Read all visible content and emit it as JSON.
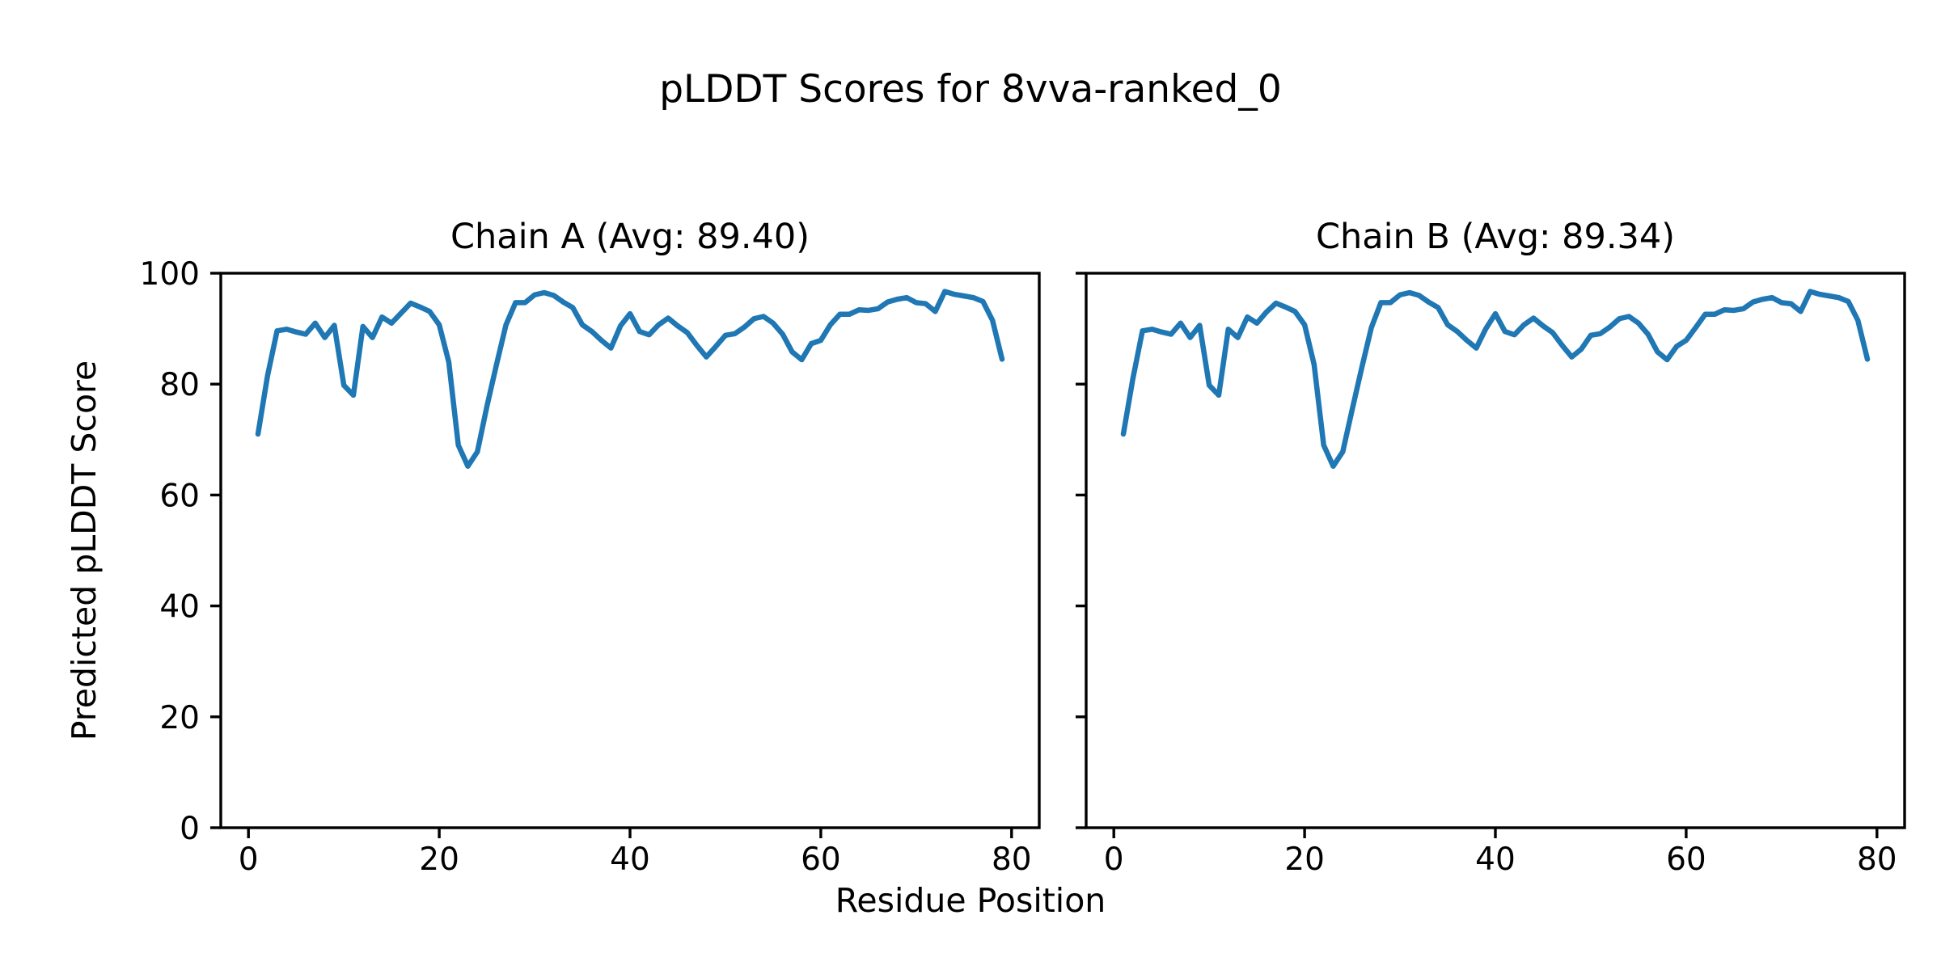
{
  "figure": {
    "title": "pLDDT Scores for 8vva-ranked_0",
    "xlabel": "Residue Position",
    "ylabel": "Predicted pLDDT Score",
    "background_color": "#ffffff",
    "text_color": "#000000",
    "line_color": "#1f77b4"
  },
  "chart_data": [
    {
      "type": "line",
      "chain": "A",
      "title": "Chain A (Avg: 89.40)",
      "avg": 89.4,
      "xlabel": "Residue Position",
      "ylabel": "Predicted pLDDT Score",
      "grid": false,
      "legend": null,
      "x_start": 1,
      "x_step": 1,
      "xlim": [
        -2.9,
        82.9
      ],
      "ylim": [
        0,
        100
      ],
      "xticks": [
        0,
        20,
        40,
        60,
        80
      ],
      "yticks": [
        0,
        20,
        40,
        60,
        80,
        100
      ],
      "show_ytick_labels": true,
      "line_color": "#1f77b4",
      "y": [
        71.0,
        81.5,
        89.6,
        89.9,
        89.4,
        89.0,
        91.0,
        88.4,
        90.6,
        79.8,
        78.0,
        90.4,
        88.4,
        92.1,
        91.0,
        92.8,
        94.6,
        93.9,
        93.1,
        90.7,
        84.0,
        69.0,
        65.2,
        67.8,
        76.0,
        83.5,
        90.7,
        94.7,
        94.7,
        96.1,
        96.5,
        96.0,
        94.8,
        93.8,
        90.7,
        89.5,
        87.9,
        86.5,
        90.5,
        92.7,
        89.5,
        88.9,
        90.7,
        91.9,
        90.5,
        89.3,
        87.0,
        84.9,
        86.8,
        88.8,
        89.1,
        90.3,
        91.8,
        92.2,
        91.0,
        89.0,
        85.8,
        84.4,
        87.3,
        87.9,
        90.7,
        92.6,
        92.6,
        93.4,
        93.3,
        93.6,
        94.8,
        95.3,
        95.6,
        94.7,
        94.5,
        93.1,
        96.7,
        96.2,
        95.9,
        95.6,
        94.9,
        91.5,
        84.5
      ]
    },
    {
      "type": "line",
      "chain": "B",
      "title": "Chain B (Avg: 89.34)",
      "avg": 89.34,
      "xlabel": "Residue Position",
      "ylabel": "Predicted pLDDT Score",
      "grid": false,
      "legend": null,
      "x_start": 1,
      "x_step": 1,
      "xlim": [
        -2.9,
        82.9
      ],
      "ylim": [
        0,
        100
      ],
      "xticks": [
        0,
        20,
        40,
        60,
        80
      ],
      "yticks": [
        0,
        20,
        40,
        60,
        80,
        100
      ],
      "show_ytick_labels": false,
      "line_color": "#1f77b4",
      "y": [
        71.0,
        81.0,
        89.6,
        89.9,
        89.4,
        89.0,
        91.0,
        88.4,
        90.6,
        79.8,
        78.0,
        89.9,
        88.4,
        92.1,
        91.0,
        93.0,
        94.6,
        93.9,
        93.1,
        90.7,
        83.5,
        69.0,
        65.2,
        67.8,
        75.5,
        83.0,
        90.2,
        94.7,
        94.7,
        96.1,
        96.5,
        96.0,
        94.8,
        93.8,
        90.7,
        89.5,
        87.9,
        86.5,
        90.0,
        92.7,
        89.5,
        88.9,
        90.7,
        91.9,
        90.5,
        89.3,
        87.0,
        84.9,
        86.3,
        88.8,
        89.1,
        90.3,
        91.8,
        92.2,
        91.0,
        89.0,
        85.8,
        84.4,
        86.8,
        87.9,
        90.2,
        92.6,
        92.6,
        93.4,
        93.3,
        93.6,
        94.8,
        95.3,
        95.6,
        94.7,
        94.5,
        93.1,
        96.7,
        96.2,
        95.9,
        95.6,
        94.9,
        91.5,
        84.5
      ]
    }
  ]
}
